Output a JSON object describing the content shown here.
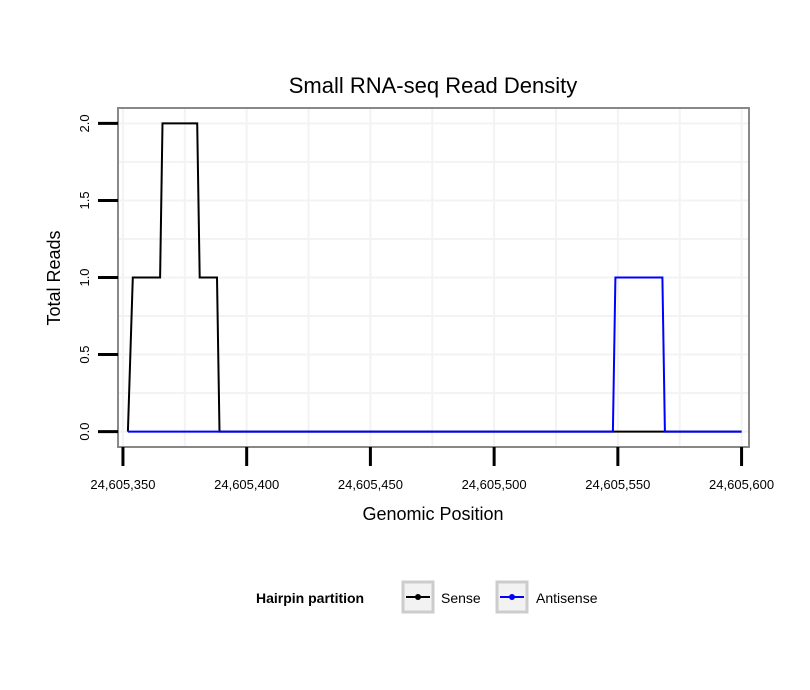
{
  "chart_data": {
    "type": "line",
    "title": "Small RNA-seq Read Density",
    "xlabel": "Genomic Position",
    "ylabel": "Total Reads",
    "xlim": [
      24605348,
      24605603
    ],
    "ylim": [
      -0.1,
      2.1
    ],
    "x_ticks": [
      24605350,
      24605400,
      24605450,
      24605500,
      24605550,
      24605600
    ],
    "x_tick_labels": [
      "24,605,350",
      "24,605,400",
      "24,605,450",
      "24,605,500",
      "24,605,550",
      "24,605,600"
    ],
    "y_ticks": [
      0,
      0.5,
      1,
      1.5,
      2
    ],
    "y_tick_labels": [
      "0.0",
      "0.5",
      "1.0",
      "1.5",
      "2.0"
    ],
    "grid": true,
    "legend": {
      "title": "Hairpin partition",
      "position": "bottom",
      "entries": [
        "Sense",
        "Antisense"
      ]
    },
    "series": [
      {
        "name": "Sense",
        "color": "#000000",
        "x": [
          24605352,
          24605354,
          24605365,
          24605366,
          24605380,
          24605381,
          24605388,
          24605389,
          24605600
        ],
        "y": [
          0,
          1,
          1,
          2,
          2,
          1,
          1,
          0,
          0
        ]
      },
      {
        "name": "Antisense",
        "color": "#0000ff",
        "x": [
          24605352,
          24605389,
          24605548,
          24605549,
          24605568,
          24605569,
          24605600
        ],
        "y": [
          0,
          0,
          0,
          1,
          1,
          0,
          0
        ]
      }
    ]
  }
}
